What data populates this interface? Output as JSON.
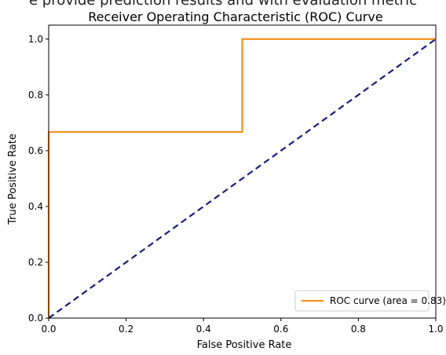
{
  "header_text": "e provide prediction results and with evaluation metric",
  "chart_data": {
    "type": "line",
    "title": "Receiver Operating Characteristic (ROC) Curve",
    "xlabel": "False Positive Rate",
    "ylabel": "True Positive Rate",
    "xlim": [
      0.0,
      1.0
    ],
    "ylim": [
      0.0,
      1.05
    ],
    "xticks": [
      0.0,
      0.2,
      0.4,
      0.6,
      0.8,
      1.0
    ],
    "yticks": [
      0.0,
      0.2,
      0.4,
      0.6,
      0.8,
      1.0
    ],
    "xtick_labels": [
      "0.0",
      "0.2",
      "0.4",
      "0.6",
      "0.8",
      "1.0"
    ],
    "ytick_labels": [
      "0.0",
      "0.2",
      "0.4",
      "0.6",
      "0.8",
      "1.0"
    ],
    "grid": false,
    "legend_position": "lower-right",
    "series": [
      {
        "name": "ROC curve (area = 0.83)",
        "color": "#f5921b",
        "line_style": "solid",
        "x": [
          0.0,
          0.0,
          0.5,
          0.5,
          1.0
        ],
        "y": [
          0.0,
          0.667,
          0.667,
          1.0,
          1.0
        ]
      },
      {
        "color": "#1b1e7a",
        "line_style": "dashed",
        "x": [
          0.0,
          1.0
        ],
        "y": [
          0.0,
          1.0
        ]
      }
    ]
  }
}
